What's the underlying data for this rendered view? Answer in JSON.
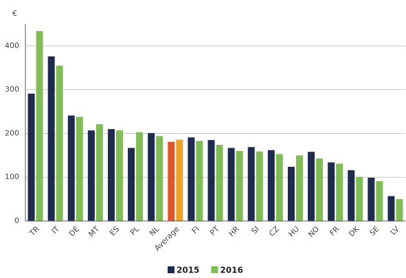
{
  "chart_data": {
    "type": "bar",
    "y_unit": "€",
    "categories": [
      "TR",
      "IT",
      "DE",
      "MT",
      "ES",
      "PL",
      "NL",
      "Average",
      "FI",
      "PT",
      "HR",
      "SI",
      "CZ",
      "HU",
      "NO",
      "FR",
      "DK",
      "SE",
      "LV"
    ],
    "highlight": "Average",
    "series": [
      {
        "name": "2015",
        "color": "#1e2b4d",
        "highlight_color": "#e0552b",
        "values": [
          291,
          376,
          241,
          207,
          210,
          167,
          201,
          181,
          191,
          185,
          167,
          169,
          162,
          124,
          158,
          134,
          116,
          99,
          57
        ]
      },
      {
        "name": "2016",
        "color": "#80bd57",
        "highlight_color": "#f0a12c",
        "values": [
          434,
          355,
          238,
          221,
          207,
          203,
          194,
          186,
          183,
          174,
          160,
          159,
          153,
          150,
          143,
          131,
          101,
          91,
          50
        ]
      }
    ],
    "ylim": [
      0,
      450
    ],
    "yticks": [
      0,
      100,
      200,
      300,
      400
    ],
    "grid": true,
    "legend": "bottom"
  }
}
